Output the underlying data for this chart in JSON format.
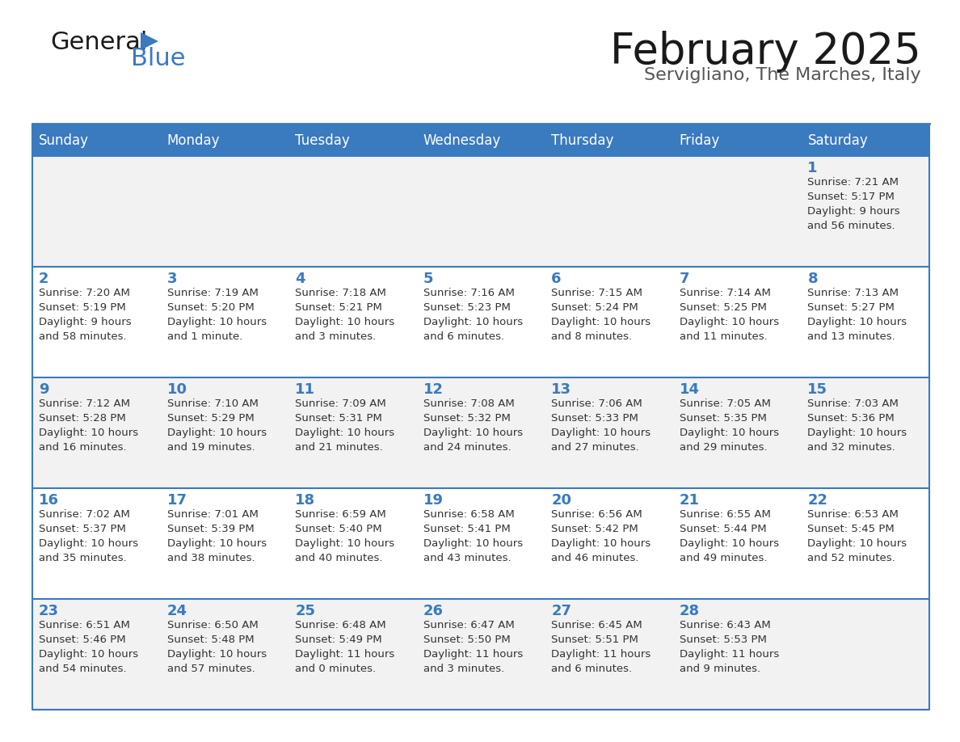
{
  "title": "February 2025",
  "subtitle": "Servigliano, The Marches, Italy",
  "header_color": "#3a7abf",
  "header_text_color": "#ffffff",
  "border_color": "#3a7abf",
  "cell_bg_odd": "#f2f2f2",
  "cell_bg_even": "#ffffff",
  "text_color": "#333333",
  "day_headers": [
    "Sunday",
    "Monday",
    "Tuesday",
    "Wednesday",
    "Thursday",
    "Friday",
    "Saturday"
  ],
  "calendar_data": [
    [
      {
        "day": "",
        "info": ""
      },
      {
        "day": "",
        "info": ""
      },
      {
        "day": "",
        "info": ""
      },
      {
        "day": "",
        "info": ""
      },
      {
        "day": "",
        "info": ""
      },
      {
        "day": "",
        "info": ""
      },
      {
        "day": "1",
        "info": "Sunrise: 7:21 AM\nSunset: 5:17 PM\nDaylight: 9 hours\nand 56 minutes."
      }
    ],
    [
      {
        "day": "2",
        "info": "Sunrise: 7:20 AM\nSunset: 5:19 PM\nDaylight: 9 hours\nand 58 minutes."
      },
      {
        "day": "3",
        "info": "Sunrise: 7:19 AM\nSunset: 5:20 PM\nDaylight: 10 hours\nand 1 minute."
      },
      {
        "day": "4",
        "info": "Sunrise: 7:18 AM\nSunset: 5:21 PM\nDaylight: 10 hours\nand 3 minutes."
      },
      {
        "day": "5",
        "info": "Sunrise: 7:16 AM\nSunset: 5:23 PM\nDaylight: 10 hours\nand 6 minutes."
      },
      {
        "day": "6",
        "info": "Sunrise: 7:15 AM\nSunset: 5:24 PM\nDaylight: 10 hours\nand 8 minutes."
      },
      {
        "day": "7",
        "info": "Sunrise: 7:14 AM\nSunset: 5:25 PM\nDaylight: 10 hours\nand 11 minutes."
      },
      {
        "day": "8",
        "info": "Sunrise: 7:13 AM\nSunset: 5:27 PM\nDaylight: 10 hours\nand 13 minutes."
      }
    ],
    [
      {
        "day": "9",
        "info": "Sunrise: 7:12 AM\nSunset: 5:28 PM\nDaylight: 10 hours\nand 16 minutes."
      },
      {
        "day": "10",
        "info": "Sunrise: 7:10 AM\nSunset: 5:29 PM\nDaylight: 10 hours\nand 19 minutes."
      },
      {
        "day": "11",
        "info": "Sunrise: 7:09 AM\nSunset: 5:31 PM\nDaylight: 10 hours\nand 21 minutes."
      },
      {
        "day": "12",
        "info": "Sunrise: 7:08 AM\nSunset: 5:32 PM\nDaylight: 10 hours\nand 24 minutes."
      },
      {
        "day": "13",
        "info": "Sunrise: 7:06 AM\nSunset: 5:33 PM\nDaylight: 10 hours\nand 27 minutes."
      },
      {
        "day": "14",
        "info": "Sunrise: 7:05 AM\nSunset: 5:35 PM\nDaylight: 10 hours\nand 29 minutes."
      },
      {
        "day": "15",
        "info": "Sunrise: 7:03 AM\nSunset: 5:36 PM\nDaylight: 10 hours\nand 32 minutes."
      }
    ],
    [
      {
        "day": "16",
        "info": "Sunrise: 7:02 AM\nSunset: 5:37 PM\nDaylight: 10 hours\nand 35 minutes."
      },
      {
        "day": "17",
        "info": "Sunrise: 7:01 AM\nSunset: 5:39 PM\nDaylight: 10 hours\nand 38 minutes."
      },
      {
        "day": "18",
        "info": "Sunrise: 6:59 AM\nSunset: 5:40 PM\nDaylight: 10 hours\nand 40 minutes."
      },
      {
        "day": "19",
        "info": "Sunrise: 6:58 AM\nSunset: 5:41 PM\nDaylight: 10 hours\nand 43 minutes."
      },
      {
        "day": "20",
        "info": "Sunrise: 6:56 AM\nSunset: 5:42 PM\nDaylight: 10 hours\nand 46 minutes."
      },
      {
        "day": "21",
        "info": "Sunrise: 6:55 AM\nSunset: 5:44 PM\nDaylight: 10 hours\nand 49 minutes."
      },
      {
        "day": "22",
        "info": "Sunrise: 6:53 AM\nSunset: 5:45 PM\nDaylight: 10 hours\nand 52 minutes."
      }
    ],
    [
      {
        "day": "23",
        "info": "Sunrise: 6:51 AM\nSunset: 5:46 PM\nDaylight: 10 hours\nand 54 minutes."
      },
      {
        "day": "24",
        "info": "Sunrise: 6:50 AM\nSunset: 5:48 PM\nDaylight: 10 hours\nand 57 minutes."
      },
      {
        "day": "25",
        "info": "Sunrise: 6:48 AM\nSunset: 5:49 PM\nDaylight: 11 hours\nand 0 minutes."
      },
      {
        "day": "26",
        "info": "Sunrise: 6:47 AM\nSunset: 5:50 PM\nDaylight: 11 hours\nand 3 minutes."
      },
      {
        "day": "27",
        "info": "Sunrise: 6:45 AM\nSunset: 5:51 PM\nDaylight: 11 hours\nand 6 minutes."
      },
      {
        "day": "28",
        "info": "Sunrise: 6:43 AM\nSunset: 5:53 PM\nDaylight: 11 hours\nand 9 minutes."
      },
      {
        "day": "",
        "info": ""
      }
    ]
  ],
  "logo_text_general": "General",
  "logo_text_blue": "Blue",
  "logo_color_general": "#1a1a1a",
  "logo_color_blue": "#3a7abf",
  "logo_triangle_color": "#3a7abf"
}
